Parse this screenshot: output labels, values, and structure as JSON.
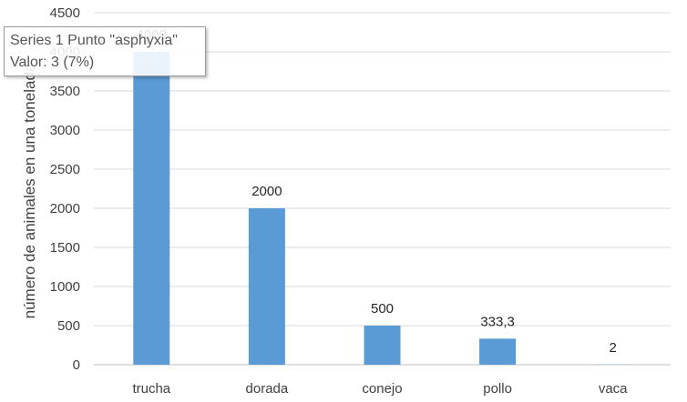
{
  "chart_data": {
    "type": "bar",
    "categories": [
      "trucha",
      "dorada",
      "conejo",
      "pollo",
      "vaca"
    ],
    "values": [
      4000,
      2000,
      500,
      333.3,
      2
    ],
    "data_labels": [
      "4000",
      "2000",
      "500",
      "333,3",
      "2"
    ],
    "ylabel": "número de animales en una tonelada",
    "ylim": [
      0,
      4500
    ],
    "yticks": [
      0,
      500,
      1000,
      1500,
      2000,
      2500,
      3000,
      3500,
      4000,
      4500
    ],
    "grid": true,
    "legend": "none",
    "bar_color": "#5b9bd5"
  },
  "tooltip": {
    "line1": "Series 1 Punto \"asphyxia\"",
    "line2": "Valor: 3 (7%)"
  }
}
